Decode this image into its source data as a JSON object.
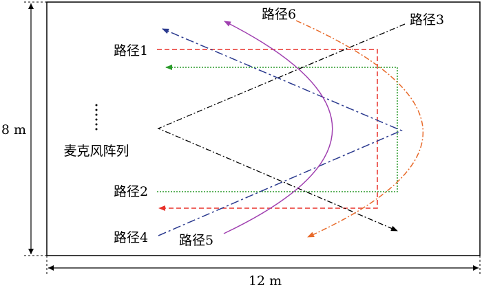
{
  "paths": [
    {
      "label": "路径1"
    },
    {
      "label": "路径2"
    },
    {
      "label": "路径3"
    },
    {
      "label": "路径4"
    },
    {
      "label": "路径5"
    },
    {
      "label": "路径6"
    }
  ],
  "microphone_array": {
    "label": "麦克风阵列"
  },
  "dimensions": {
    "height": "8 m",
    "width": "12 m"
  }
}
